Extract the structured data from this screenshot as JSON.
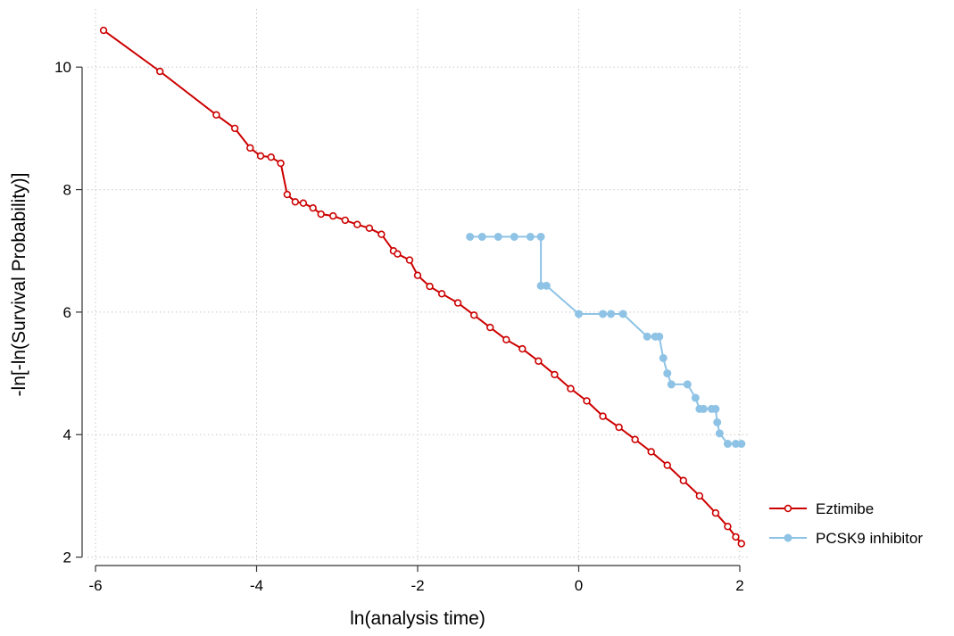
{
  "chart_data": {
    "type": "line",
    "title": "",
    "xlabel": "ln(analysis time)",
    "ylabel": "-ln[-ln(Survival Probability)]",
    "xlim": [
      -6.1,
      2.1
    ],
    "ylim": [
      1.95,
      10.95
    ],
    "xticks": [
      -6,
      -4,
      -2,
      0,
      2
    ],
    "yticks": [
      2,
      4,
      6,
      8,
      10
    ],
    "grid": true,
    "legend_position": "right",
    "series": [
      {
        "name": "Eztimibe",
        "color": "#cc0000",
        "marker": "hollow-circle",
        "x": [
          -5.9,
          -5.2,
          -4.5,
          -4.27,
          -4.08,
          -3.95,
          -3.82,
          -3.7,
          -3.62,
          -3.52,
          -3.42,
          -3.3,
          -3.2,
          -3.05,
          -2.9,
          -2.75,
          -2.6,
          -2.45,
          -2.3,
          -2.25,
          -2.1,
          -2.0,
          -1.85,
          -1.7,
          -1.5,
          -1.3,
          -1.1,
          -0.9,
          -0.7,
          -0.5,
          -0.3,
          -0.1,
          0.1,
          0.3,
          0.5,
          0.7,
          0.9,
          1.1,
          1.3,
          1.5,
          1.7,
          1.85,
          1.95,
          2.02
        ],
        "y": [
          10.6,
          9.93,
          9.22,
          9.0,
          8.68,
          8.55,
          8.53,
          8.43,
          7.92,
          7.8,
          7.78,
          7.7,
          7.6,
          7.57,
          7.5,
          7.43,
          7.37,
          7.27,
          7.0,
          6.95,
          6.85,
          6.6,
          6.42,
          6.3,
          6.15,
          5.95,
          5.75,
          5.55,
          5.4,
          5.2,
          4.98,
          4.75,
          4.55,
          4.3,
          4.12,
          3.92,
          3.72,
          3.5,
          3.25,
          3.0,
          2.72,
          2.5,
          2.33,
          2.22
        ]
      },
      {
        "name": "PCSK9 inhibitor",
        "color": "#8ec3e6",
        "marker": "filled-circle",
        "x": [
          -1.35,
          -1.2,
          -1.0,
          -0.8,
          -0.6,
          -0.47,
          -0.47,
          -0.4,
          0.0,
          0.3,
          0.4,
          0.55,
          0.85,
          0.95,
          1.0,
          1.05,
          1.1,
          1.15,
          1.35,
          1.45,
          1.5,
          1.55,
          1.65,
          1.7,
          1.72,
          1.75,
          1.85,
          1.95,
          2.02
        ],
        "y": [
          7.23,
          7.23,
          7.23,
          7.23,
          7.23,
          7.23,
          6.43,
          6.43,
          5.97,
          5.97,
          5.97,
          5.97,
          5.6,
          5.6,
          5.6,
          5.25,
          5.0,
          4.82,
          4.82,
          4.6,
          4.42,
          4.42,
          4.42,
          4.42,
          4.2,
          4.02,
          3.85,
          3.85,
          3.85
        ]
      }
    ]
  }
}
